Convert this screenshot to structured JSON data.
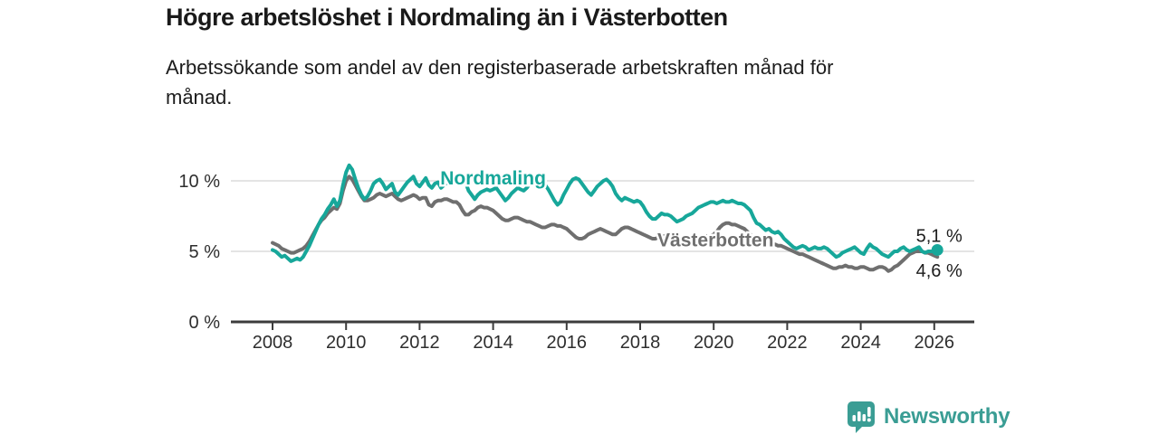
{
  "header": {
    "title": "Högre arbetslöshet i Nordmaling än i Västerbotten",
    "subtitle": "Arbetssökande som andel av den registerbaserade arbetskraften månad för månad."
  },
  "colors": {
    "accent_teal": "#17a79a",
    "line_gray": "#6f6f6f",
    "text_dark": "#1a1a1a",
    "axis_text": "#2e2e2e",
    "gridline": "#dcdcdc",
    "axis_line": "#3c3c3c",
    "brand_teal": "#3a9d94"
  },
  "chart_data": {
    "type": "line",
    "title": "Högre arbetslöshet i Nordmaling än i Västerbotten",
    "xlabel": "",
    "ylabel": "",
    "grid": "horizontal",
    "legend_position": "inline-labels-on-lines",
    "x_start_year": 2008,
    "x_step_months": 1,
    "x_end": "2026-02",
    "xlim": [
      2007.9,
      2027.1
    ],
    "ylim": [
      0,
      11.7
    ],
    "x_tick_labels": [
      "2008",
      "2010",
      "2012",
      "2014",
      "2016",
      "2018",
      "2020",
      "2022",
      "2024",
      "2026"
    ],
    "x_tick_years": [
      2008,
      2010,
      2012,
      2014,
      2016,
      2018,
      2020,
      2022,
      2024,
      2026
    ],
    "y_ticks": [
      {
        "value": 0,
        "label": "0 %"
      },
      {
        "value": 5,
        "label": "5 %"
      },
      {
        "value": 10,
        "label": "10 %"
      }
    ],
    "series": [
      {
        "name": "Nordmaling",
        "color": "#17a79a",
        "end_label": "5,1 %",
        "end_value": 5.1,
        "end_dot": true,
        "end_label_position": "above",
        "values": [
          5.1,
          5.0,
          4.8,
          4.6,
          4.7,
          4.5,
          4.3,
          4.4,
          4.5,
          4.4,
          4.6,
          5.0,
          5.4,
          5.9,
          6.4,
          6.9,
          7.3,
          7.6,
          8.0,
          8.3,
          8.7,
          8.2,
          8.6,
          9.7,
          10.6,
          11.1,
          10.8,
          10.1,
          9.5,
          9.0,
          8.7,
          8.9,
          9.3,
          9.8,
          10.0,
          10.1,
          9.8,
          9.4,
          9.6,
          9.8,
          9.2,
          9.0,
          9.3,
          9.6,
          9.9,
          10.1,
          10.3,
          9.8,
          9.6,
          9.9,
          10.2,
          9.7,
          9.5,
          9.8,
          9.9,
          9.5,
          9.7,
          9.9,
          10.0,
          9.9,
          10.1,
          10.3,
          10.4,
          9.9,
          9.3,
          9.0,
          8.7,
          9.0,
          9.2,
          9.3,
          9.4,
          9.3,
          9.4,
          9.5,
          9.2,
          8.9,
          8.6,
          8.8,
          9.1,
          9.3,
          9.5,
          9.4,
          9.3,
          9.5,
          9.8,
          10.2,
          10.0,
          10.2,
          10.1,
          9.7,
          9.4,
          9.0,
          8.6,
          8.3,
          8.5,
          9.0,
          9.4,
          9.8,
          10.1,
          10.2,
          10.1,
          9.8,
          9.5,
          9.2,
          9.0,
          9.3,
          9.6,
          9.8,
          10.0,
          10.1,
          9.9,
          9.6,
          9.1,
          8.8,
          8.6,
          8.8,
          8.7,
          8.6,
          8.5,
          8.6,
          8.5,
          8.2,
          7.8,
          7.5,
          7.3,
          7.3,
          7.5,
          7.7,
          7.6,
          7.6,
          7.5,
          7.3,
          7.1,
          7.2,
          7.3,
          7.5,
          7.6,
          7.7,
          7.9,
          8.1,
          8.2,
          8.3,
          8.4,
          8.5,
          8.5,
          8.4,
          8.5,
          8.6,
          8.5,
          8.5,
          8.6,
          8.5,
          8.4,
          8.4,
          8.3,
          8.1,
          7.9,
          7.4,
          7.0,
          6.9,
          6.7,
          6.5,
          6.6,
          6.4,
          6.3,
          6.4,
          6.2,
          5.9,
          5.7,
          5.5,
          5.3,
          5.2,
          5.3,
          5.4,
          5.3,
          5.1,
          5.2,
          5.3,
          5.2,
          5.2,
          5.3,
          5.2,
          5.0,
          4.8,
          4.6,
          4.7,
          4.9,
          5.0,
          5.1,
          5.2,
          5.3,
          5.1,
          4.9,
          4.8,
          5.2,
          5.5,
          5.3,
          5.2,
          5.0,
          4.8,
          4.7,
          4.6,
          4.8,
          5.0,
          5.0,
          5.2,
          5.3,
          5.1,
          5.0,
          5.1,
          5.2,
          5.3,
          5.0,
          4.9,
          5.0,
          5.0,
          5.0,
          5.1
        ]
      },
      {
        "name": "Västerbotten",
        "color": "#6f6f6f",
        "end_label": "4,6 %",
        "end_value": 4.6,
        "end_dot": false,
        "end_label_position": "below",
        "values": [
          5.6,
          5.5,
          5.4,
          5.2,
          5.1,
          5.0,
          4.9,
          4.9,
          5.0,
          5.1,
          5.2,
          5.4,
          5.7,
          6.1,
          6.5,
          6.9,
          7.2,
          7.4,
          7.7,
          7.9,
          8.1,
          8.0,
          8.4,
          9.3,
          10.0,
          10.3,
          10.1,
          9.7,
          9.3,
          8.9,
          8.6,
          8.6,
          8.7,
          8.8,
          9.0,
          9.1,
          9.0,
          8.9,
          9.0,
          9.1,
          8.9,
          8.7,
          8.6,
          8.7,
          8.8,
          8.9,
          9.0,
          8.9,
          8.7,
          8.8,
          8.8,
          8.3,
          8.2,
          8.5,
          8.6,
          8.6,
          8.7,
          8.7,
          8.6,
          8.5,
          8.5,
          8.3,
          7.9,
          7.6,
          7.6,
          7.8,
          7.9,
          8.1,
          8.2,
          8.1,
          8.1,
          8.0,
          7.9,
          7.7,
          7.5,
          7.3,
          7.2,
          7.2,
          7.3,
          7.4,
          7.4,
          7.3,
          7.2,
          7.1,
          7.1,
          7.0,
          6.9,
          6.8,
          6.7,
          6.7,
          6.8,
          6.9,
          6.9,
          6.8,
          6.8,
          6.7,
          6.6,
          6.4,
          6.2,
          6.0,
          5.9,
          5.9,
          6.0,
          6.2,
          6.3,
          6.4,
          6.5,
          6.6,
          6.5,
          6.4,
          6.3,
          6.2,
          6.2,
          6.4,
          6.6,
          6.7,
          6.7,
          6.6,
          6.5,
          6.4,
          6.3,
          6.2,
          6.1,
          6.0,
          5.9,
          5.9,
          6.0,
          6.0,
          6.1,
          6.0,
          5.9,
          5.9,
          5.8,
          5.7,
          5.7,
          5.7,
          5.8,
          5.8,
          5.9,
          5.9,
          6.0,
          6.0,
          6.1,
          6.1,
          6.2,
          6.4,
          6.7,
          6.9,
          7.0,
          7.0,
          6.9,
          6.9,
          6.8,
          6.7,
          6.6,
          6.4,
          6.2,
          6.0,
          5.9,
          5.8,
          5.7,
          5.6,
          5.6,
          5.5,
          5.5,
          5.4,
          5.4,
          5.3,
          5.2,
          5.1,
          5.0,
          4.9,
          4.8,
          4.8,
          4.7,
          4.6,
          4.5,
          4.4,
          4.3,
          4.2,
          4.1,
          4.0,
          3.9,
          3.8,
          3.8,
          3.9,
          3.9,
          4.0,
          3.9,
          3.9,
          3.8,
          3.8,
          3.9,
          3.9,
          3.8,
          3.7,
          3.7,
          3.8,
          3.9,
          3.9,
          3.8,
          3.6,
          3.7,
          3.9,
          4.0,
          4.2,
          4.4,
          4.6,
          4.8,
          4.9,
          5.0,
          5.0,
          5.0,
          4.9,
          4.9,
          4.8,
          4.7,
          4.6
        ]
      }
    ],
    "annotations": [
      {
        "text": "Nordmaling",
        "x": 2014.0,
        "y": 10.2,
        "series": 0
      },
      {
        "text": "Västerbotten",
        "x": 2020.05,
        "y": 5.8,
        "series": 1
      }
    ]
  },
  "footer": {
    "brand": "Newsworthy"
  }
}
